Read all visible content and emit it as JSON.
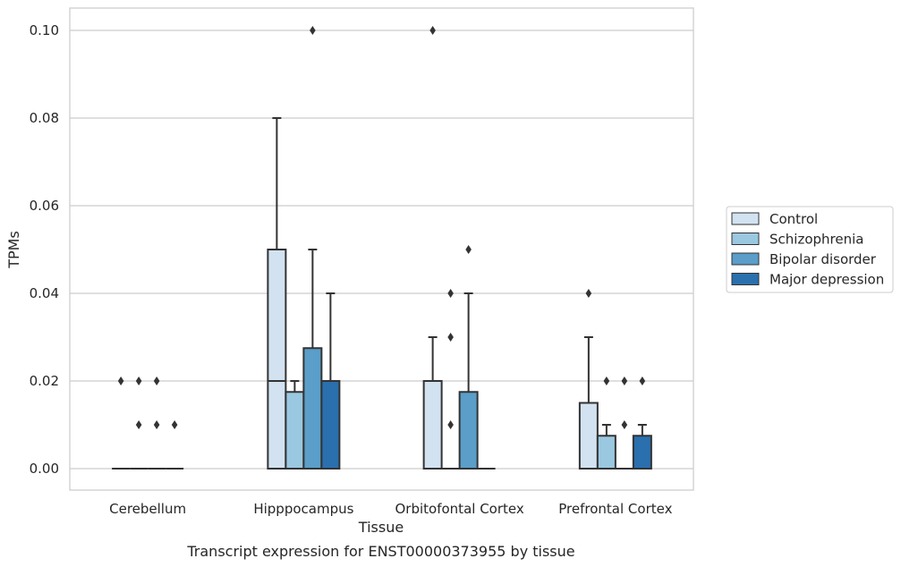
{
  "chart_data": {
    "type": "boxplot",
    "title": "",
    "caption": "Transcript expression for ENST00000373955 by tissue",
    "xlabel": "Tissue",
    "ylabel": "TPMs",
    "ylim": [
      -0.005,
      0.105
    ],
    "yticks": [
      0.0,
      0.02,
      0.04,
      0.06,
      0.08,
      0.1
    ],
    "ytick_labels": [
      "0.00",
      "0.02",
      "0.04",
      "0.06",
      "0.08",
      "0.10"
    ],
    "grid": true,
    "legend_position": "right",
    "categories": [
      "Cerebellum",
      "Hipppocampus",
      "Orbitofontal Cortex",
      "Prefrontal Cortex"
    ],
    "series": [
      {
        "name": "Control",
        "color": "#d2e2f1",
        "boxes": [
          {
            "q1": 0.0,
            "median": 0.0,
            "q3": 0.0,
            "whisker_low": 0.0,
            "whisker_high": 0.0,
            "outliers": [
              0.02
            ]
          },
          {
            "q1": 0.0,
            "median": 0.02,
            "q3": 0.05,
            "whisker_low": 0.0,
            "whisker_high": 0.08,
            "outliers": []
          },
          {
            "q1": 0.0,
            "median": 0.0,
            "q3": 0.02,
            "whisker_low": 0.0,
            "whisker_high": 0.03,
            "outliers": [
              0.1
            ]
          },
          {
            "q1": 0.0,
            "median": 0.0,
            "q3": 0.015,
            "whisker_low": 0.0,
            "whisker_high": 0.03,
            "outliers": [
              0.04
            ]
          }
        ]
      },
      {
        "name": "Schizophrenia",
        "color": "#9ac8e0",
        "boxes": [
          {
            "q1": 0.0,
            "median": 0.0,
            "q3": 0.0,
            "whisker_low": 0.0,
            "whisker_high": 0.0,
            "outliers": [
              0.02,
              0.01
            ]
          },
          {
            "q1": 0.0,
            "median": 0.0,
            "q3": 0.0175,
            "whisker_low": 0.0,
            "whisker_high": 0.02,
            "outliers": []
          },
          {
            "q1": 0.0,
            "median": 0.0,
            "q3": 0.0,
            "whisker_low": 0.0,
            "whisker_high": 0.0,
            "outliers": [
              0.04,
              0.03,
              0.01
            ]
          },
          {
            "q1": 0.0,
            "median": 0.0,
            "q3": 0.0075,
            "whisker_low": 0.0,
            "whisker_high": 0.01,
            "outliers": [
              0.02
            ]
          }
        ]
      },
      {
        "name": "Bipolar disorder",
        "color": "#5a9ec9",
        "boxes": [
          {
            "q1": 0.0,
            "median": 0.0,
            "q3": 0.0,
            "whisker_low": 0.0,
            "whisker_high": 0.0,
            "outliers": [
              0.02,
              0.01
            ]
          },
          {
            "q1": 0.0,
            "median": 0.0,
            "q3": 0.0275,
            "whisker_low": 0.0,
            "whisker_high": 0.05,
            "outliers": [
              0.1
            ]
          },
          {
            "q1": 0.0,
            "median": 0.0,
            "q3": 0.0175,
            "whisker_low": 0.0,
            "whisker_high": 0.04,
            "outliers": [
              0.05
            ]
          },
          {
            "q1": 0.0,
            "median": 0.0,
            "q3": 0.0,
            "whisker_low": 0.0,
            "whisker_high": 0.0,
            "outliers": [
              0.02,
              0.01
            ]
          }
        ]
      },
      {
        "name": "Major depression",
        "color": "#2a6fae",
        "boxes": [
          {
            "q1": 0.0,
            "median": 0.0,
            "q3": 0.0,
            "whisker_low": 0.0,
            "whisker_high": 0.0,
            "outliers": [
              0.01
            ]
          },
          {
            "q1": 0.0,
            "median": 0.0,
            "q3": 0.02,
            "whisker_low": 0.0,
            "whisker_high": 0.04,
            "outliers": []
          },
          {
            "q1": 0.0,
            "median": 0.0,
            "q3": 0.0,
            "whisker_low": 0.0,
            "whisker_high": 0.0,
            "outliers": []
          },
          {
            "q1": 0.0,
            "median": 0.0,
            "q3": 0.0075,
            "whisker_low": 0.0,
            "whisker_high": 0.01,
            "outliers": [
              0.02
            ]
          }
        ]
      }
    ]
  }
}
